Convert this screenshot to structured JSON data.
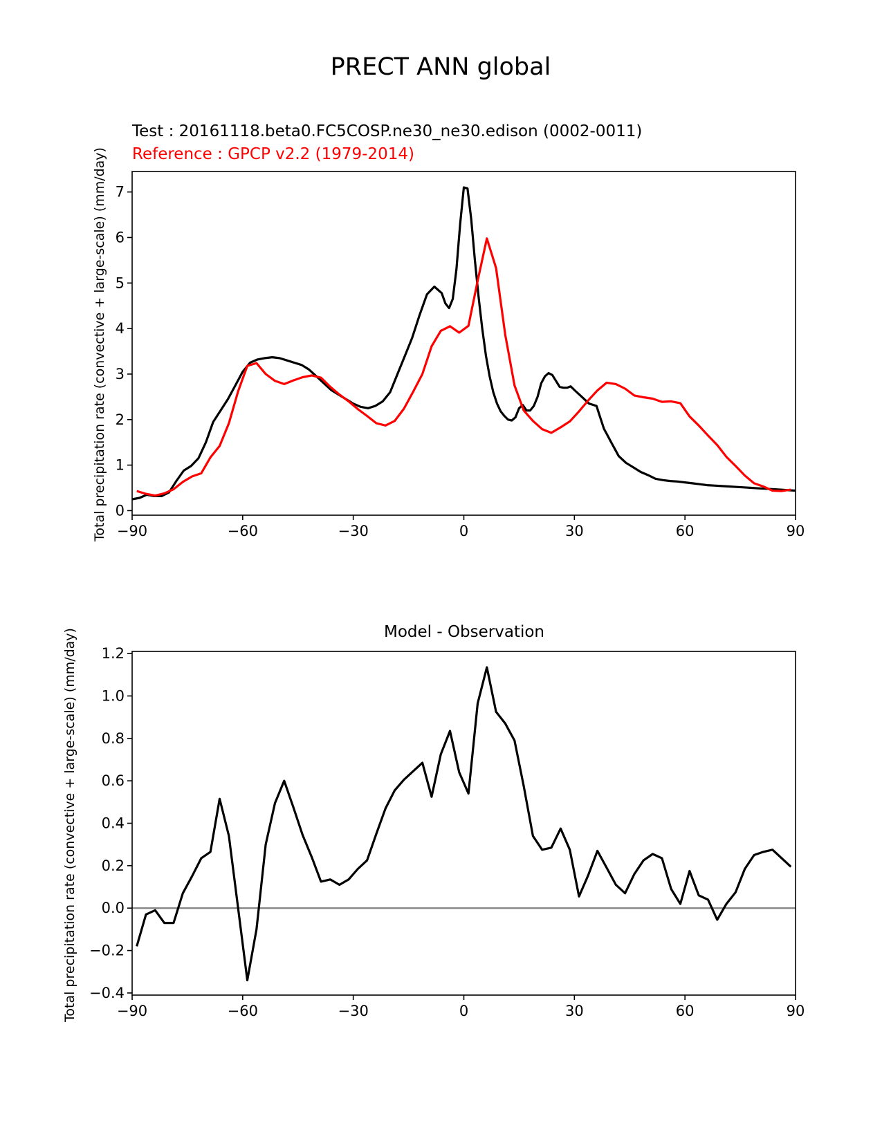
{
  "title": "PRECT ANN global",
  "chart_data": [
    {
      "type": "line",
      "test_label": "Test : 20161118.beta0.FC5COSP.ne30_ne30.edison (0002-0011)",
      "ref_label": "Reference : GPCP v2.2 (1979-2014)",
      "ylabel": "Total precipitation rate (convective + large-scale) (mm/day)",
      "xlim": [
        -90,
        90
      ],
      "ylim": [
        -0.1,
        7.45
      ],
      "xticks": [
        -90,
        -60,
        -30,
        0,
        30,
        60,
        90
      ],
      "xtick_labels": [
        "−90",
        "−60",
        "−30",
        "0",
        "30",
        "60",
        "90"
      ],
      "yticks": [
        0,
        1,
        2,
        3,
        4,
        5,
        6,
        7
      ],
      "ytick_labels": [
        "0",
        "1",
        "2",
        "3",
        "4",
        "5",
        "6",
        "7"
      ],
      "grid": false,
      "series": [
        {
          "name": "Test",
          "color": "#000000",
          "x": [
            -90,
            -88,
            -86,
            -84,
            -82,
            -80,
            -78,
            -76,
            -74,
            -72,
            -70,
            -68,
            -66,
            -64,
            -62,
            -60,
            -58,
            -56,
            -54,
            -52,
            -50,
            -48,
            -46,
            -44,
            -42,
            -40,
            -38,
            -36,
            -34,
            -32,
            -30,
            -28,
            -26,
            -24,
            -22,
            -20,
            -18,
            -16,
            -14,
            -12,
            -10,
            -8,
            -6,
            -5,
            -4,
            -3,
            -2,
            -1,
            0,
            1,
            2,
            3,
            4,
            5,
            6,
            7,
            8,
            9,
            10,
            11,
            12,
            13,
            14,
            15,
            16,
            17,
            18,
            19,
            20,
            21,
            22,
            23,
            24,
            25,
            26,
            27,
            28,
            29,
            30,
            32,
            34,
            36,
            37,
            38,
            40,
            42,
            44,
            46,
            48,
            50,
            52,
            54,
            56,
            58,
            60,
            62,
            64,
            66,
            68,
            70,
            72,
            74,
            76,
            78,
            80,
            82,
            84,
            86,
            88,
            90
          ],
          "values": [
            0.25,
            0.28,
            0.35,
            0.32,
            0.32,
            0.4,
            0.65,
            0.88,
            0.98,
            1.15,
            1.5,
            1.95,
            2.2,
            2.45,
            2.75,
            3.05,
            3.25,
            3.32,
            3.35,
            3.37,
            3.35,
            3.3,
            3.25,
            3.2,
            3.1,
            2.95,
            2.8,
            2.65,
            2.55,
            2.45,
            2.35,
            2.28,
            2.25,
            2.3,
            2.4,
            2.6,
            3.0,
            3.4,
            3.8,
            4.3,
            4.75,
            4.92,
            4.78,
            4.55,
            4.45,
            4.65,
            5.3,
            6.3,
            7.1,
            7.08,
            6.4,
            5.5,
            4.7,
            4.0,
            3.4,
            2.95,
            2.6,
            2.35,
            2.18,
            2.08,
            2.0,
            1.98,
            2.05,
            2.25,
            2.32,
            2.2,
            2.2,
            2.3,
            2.5,
            2.8,
            2.95,
            3.02,
            2.98,
            2.85,
            2.72,
            2.7,
            2.7,
            2.73,
            2.65,
            2.5,
            2.35,
            2.3,
            2.05,
            1.8,
            1.5,
            1.2,
            1.05,
            0.95,
            0.85,
            0.78,
            0.7,
            0.67,
            0.65,
            0.64,
            0.62,
            0.6,
            0.58,
            0.56,
            0.55,
            0.54,
            0.53,
            0.52,
            0.51,
            0.5,
            0.49,
            0.48,
            0.47,
            0.46,
            0.45,
            0.44
          ],
          "x_note_dummy": null
        },
        {
          "name": "Reference",
          "color": "#ff0000",
          "x": [
            -88.75,
            -86.25,
            -83.75,
            -81.25,
            -78.75,
            -76.25,
            -73.75,
            -71.25,
            -68.75,
            -66.25,
            -63.75,
            -61.25,
            -58.75,
            -56.25,
            -53.75,
            -51.25,
            -48.75,
            -46.25,
            -43.75,
            -41.25,
            -38.75,
            -36.25,
            -33.75,
            -31.25,
            -28.75,
            -26.25,
            -23.75,
            -21.25,
            -18.75,
            -16.25,
            -13.75,
            -11.25,
            -8.75,
            -6.25,
            -3.75,
            -1.25,
            1.25,
            3.75,
            6.25,
            8.75,
            11.25,
            13.75,
            16.25,
            18.75,
            21.25,
            23.75,
            26.25,
            28.75,
            31.25,
            33.75,
            36.25,
            38.75,
            41.25,
            43.75,
            46.25,
            48.75,
            51.25,
            53.75,
            56.25,
            58.75,
            61.25,
            63.75,
            66.25,
            68.75,
            71.25,
            73.75,
            76.25,
            78.75,
            81.25,
            83.75,
            86.25,
            88.75
          ],
          "values": [
            0.43,
            0.37,
            0.33,
            0.38,
            0.47,
            0.63,
            0.75,
            0.82,
            1.17,
            1.42,
            1.92,
            2.62,
            3.18,
            3.24,
            3.0,
            2.85,
            2.78,
            2.86,
            2.93,
            2.97,
            2.92,
            2.72,
            2.55,
            2.4,
            2.23,
            2.08,
            1.92,
            1.87,
            1.97,
            2.24,
            2.61,
            3.0,
            3.61,
            3.95,
            4.05,
            3.91,
            4.06,
            5.05,
            5.98,
            5.33,
            3.86,
            2.75,
            2.2,
            1.97,
            1.79,
            1.71,
            1.83,
            1.96,
            2.18,
            2.42,
            2.64,
            2.81,
            2.78,
            2.68,
            2.53,
            2.49,
            2.46,
            2.39,
            2.4,
            2.36,
            2.07,
            1.87,
            1.65,
            1.44,
            1.18,
            0.98,
            0.77,
            0.6,
            0.53,
            0.44,
            0.43,
            0.46
          ]
        }
      ]
    },
    {
      "type": "line",
      "title": "Model - Observation",
      "ylabel": "Total precipitation rate (convective + large-scale) (mm/day)",
      "xlim": [
        -90,
        90
      ],
      "ylim": [
        -0.41,
        1.21
      ],
      "xticks": [
        -90,
        -60,
        -30,
        0,
        30,
        60,
        90
      ],
      "xtick_labels": [
        "−90",
        "−60",
        "−30",
        "0",
        "30",
        "60",
        "90"
      ],
      "yticks": [
        -0.4,
        -0.2,
        0.0,
        0.2,
        0.4,
        0.6,
        0.8,
        1.0,
        1.2
      ],
      "ytick_labels": [
        "−0.4",
        "−0.2",
        "0.0",
        "0.2",
        "0.4",
        "0.6",
        "0.8",
        "1.0",
        "1.2"
      ],
      "zero_line": 0,
      "grid": false,
      "series": [
        {
          "name": "",
          "color": "#000000",
          "x": [
            -88.75,
            -86.25,
            -83.75,
            -81.25,
            -78.75,
            -76.25,
            -73.75,
            -71.25,
            -68.75,
            -66.25,
            -63.75,
            -61.25,
            -58.75,
            -56.25,
            -53.75,
            -51.25,
            -48.75,
            -46.25,
            -43.75,
            -41.25,
            -38.75,
            -36.25,
            -33.75,
            -31.25,
            -28.75,
            -26.25,
            -23.75,
            -21.25,
            -18.75,
            -16.25,
            -13.75,
            -11.25,
            -8.75,
            -6.25,
            -3.75,
            -1.25,
            1.25,
            3.75,
            6.25,
            8.75,
            11.25,
            13.75,
            16.25,
            18.75,
            21.25,
            23.75,
            26.25,
            28.75,
            31.25,
            33.75,
            36.25,
            38.75,
            41.25,
            43.75,
            46.25,
            48.75,
            51.25,
            53.75,
            56.25,
            58.75,
            61.25,
            63.75,
            66.25,
            68.75,
            71.25,
            73.75,
            76.25,
            78.75,
            81.25,
            83.75,
            86.25,
            88.75
          ],
          "values": [
            -0.18,
            -0.03,
            -0.01,
            -0.07,
            -0.07,
            0.07,
            0.15,
            0.235,
            0.265,
            0.515,
            0.34,
            -0.0,
            -0.34,
            -0.1,
            0.3,
            0.495,
            0.6,
            0.475,
            0.345,
            0.24,
            0.125,
            0.135,
            0.11,
            0.135,
            0.185,
            0.225,
            0.35,
            0.47,
            0.555,
            0.605,
            0.645,
            0.685,
            0.525,
            0.725,
            0.835,
            0.64,
            0.54,
            0.965,
            1.135,
            0.925,
            0.87,
            0.79,
            0.575,
            0.34,
            0.275,
            0.285,
            0.375,
            0.275,
            0.055,
            0.155,
            0.27,
            0.19,
            0.11,
            0.07,
            0.16,
            0.225,
            0.255,
            0.235,
            0.09,
            0.02,
            0.175,
            0.06,
            0.04,
            -0.055,
            0.02,
            0.075,
            0.185,
            0.25,
            0.265,
            0.275,
            0.235,
            0.195
          ]
        }
      ]
    }
  ]
}
